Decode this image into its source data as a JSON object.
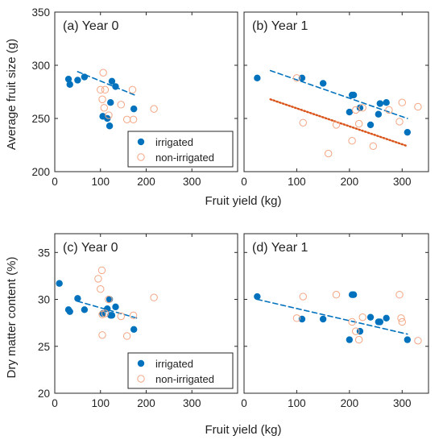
{
  "colors": {
    "irrigated": "#0072BD",
    "non_irrigated": "#F4A582",
    "dotted_fit": "#D95319",
    "axis": "#262626"
  },
  "labels": {
    "fruit_yield": "Fruit yield (kg)",
    "avg_fruit_size": "Average fruit size (g)",
    "dry_matter": "Dry matter content (%)"
  },
  "chart_data": [
    {
      "type": "scatter",
      "title": "(a) Year 0",
      "xlim": [
        0,
        400
      ],
      "ylim": [
        200,
        350
      ],
      "xticks": [
        0,
        100,
        200,
        300
      ],
      "yticks": [
        200,
        250,
        300,
        350
      ],
      "show_xtick_labels": true,
      "show_ytick_labels": true,
      "legend": {
        "position": "bottom-right",
        "entries": [
          "irrigated",
          "non-irrigated"
        ]
      },
      "series": [
        {
          "name": "irrigated",
          "marker": "filled",
          "points": [
            [
              30,
              287
            ],
            [
              33,
              282
            ],
            [
              50,
              286
            ],
            [
              65,
              289
            ],
            [
              105,
              252
            ],
            [
              115,
              250
            ],
            [
              120,
              243
            ],
            [
              122,
              265
            ],
            [
              125,
              285
            ],
            [
              133,
              280
            ],
            [
              173,
              259
            ]
          ]
        },
        {
          "name": "non-irrigated",
          "marker": "open",
          "points": [
            [
              100,
              277
            ],
            [
              104,
              268
            ],
            [
              106,
              293
            ],
            [
              108,
              260
            ],
            [
              110,
              277
            ],
            [
              118,
              253
            ],
            [
              145,
              263
            ],
            [
              158,
              249
            ],
            [
              170,
              277
            ],
            [
              172,
              249
            ],
            [
              217,
              259
            ]
          ]
        }
      ],
      "fits": [
        {
          "series": "irrigated",
          "style": "dashed",
          "x": [
            50,
            175
          ],
          "y": [
            294,
            272
          ]
        }
      ]
    },
    {
      "type": "scatter",
      "title": "(b) Year 1",
      "xlim": [
        0,
        350
      ],
      "ylim": [
        200,
        350
      ],
      "xticks": [
        0,
        100,
        200,
        300
      ],
      "yticks": [
        200,
        250,
        300,
        350
      ],
      "show_xtick_labels": true,
      "show_ytick_labels": false,
      "series": [
        {
          "name": "irrigated",
          "marker": "filled",
          "points": [
            [
              25,
              288
            ],
            [
              110,
              288
            ],
            [
              150,
              283
            ],
            [
              200,
              256
            ],
            [
              205,
              272
            ],
            [
              208,
              272
            ],
            [
              220,
              260
            ],
            [
              240,
              244
            ],
            [
              255,
              254
            ],
            [
              258,
              264
            ],
            [
              270,
              265
            ],
            [
              310,
              237
            ]
          ]
        },
        {
          "name": "non-irrigated",
          "marker": "open",
          "points": [
            [
              100,
              288
            ],
            [
              112,
              246
            ],
            [
              160,
              217
            ],
            [
              175,
              244
            ],
            [
              205,
              229
            ],
            [
              212,
              258
            ],
            [
              218,
              245
            ],
            [
              225,
              260
            ],
            [
              245,
              224
            ],
            [
              275,
              258
            ],
            [
              295,
              247
            ],
            [
              300,
              265
            ],
            [
              330,
              261
            ]
          ]
        }
      ],
      "fits": [
        {
          "series": "irrigated",
          "style": "dashed",
          "x": [
            50,
            310
          ],
          "y": [
            295,
            250
          ]
        },
        {
          "series": "non-irrigated",
          "style": "dotted",
          "x": [
            50,
            310
          ],
          "y": [
            268,
            224
          ]
        }
      ]
    },
    {
      "type": "scatter",
      "title": "(c) Year 0",
      "xlim": [
        0,
        400
      ],
      "ylim": [
        20,
        37
      ],
      "xticks": [
        0,
        100,
        200,
        300
      ],
      "yticks": [
        20,
        25,
        30,
        35
      ],
      "show_xtick_labels": true,
      "show_ytick_labels": true,
      "legend": {
        "position": "bottom-right",
        "entries": [
          "irrigated",
          "non-irrigated"
        ]
      },
      "series": [
        {
          "name": "irrigated",
          "marker": "filled",
          "points": [
            [
              10,
              31.7
            ],
            [
              30,
              28.9
            ],
            [
              33,
              28.7
            ],
            [
              50,
              30.1
            ],
            [
              65,
              28.9
            ],
            [
              105,
              28.5
            ],
            [
              115,
              29.0
            ],
            [
              120,
              30.0
            ],
            [
              122,
              28.3
            ],
            [
              125,
              28.3
            ],
            [
              133,
              29.2
            ],
            [
              173,
              26.8
            ]
          ]
        },
        {
          "name": "non-irrigated",
          "marker": "open",
          "points": [
            [
              95,
              32.2
            ],
            [
              100,
              31.1
            ],
            [
              103,
              33.1
            ],
            [
              104,
              28.4
            ],
            [
              104,
              26.2
            ],
            [
              110,
              28.5
            ],
            [
              118,
              30.0
            ],
            [
              145,
              28.2
            ],
            [
              158,
              26.1
            ],
            [
              172,
              28.3
            ],
            [
              217,
              30.2
            ]
          ]
        }
      ],
      "fits": [
        {
          "series": "irrigated",
          "style": "dashed",
          "x": [
            50,
            180
          ],
          "y": [
            29.8,
            28.0
          ]
        }
      ]
    },
    {
      "type": "scatter",
      "title": "(d) Year 1",
      "xlim": [
        0,
        350
      ],
      "ylim": [
        20,
        37
      ],
      "xticks": [
        0,
        100,
        200,
        300
      ],
      "yticks": [
        20,
        25,
        30,
        35
      ],
      "show_xtick_labels": true,
      "show_ytick_labels": false,
      "series": [
        {
          "name": "irrigated",
          "marker": "filled",
          "points": [
            [
              25,
              30.3
            ],
            [
              110,
              27.9
            ],
            [
              150,
              27.9
            ],
            [
              200,
              25.7
            ],
            [
              205,
              30.5
            ],
            [
              208,
              30.5
            ],
            [
              220,
              26.6
            ],
            [
              240,
              28.1
            ],
            [
              255,
              27.6
            ],
            [
              258,
              27.6
            ],
            [
              270,
              28.0
            ],
            [
              310,
              25.7
            ]
          ]
        },
        {
          "name": "non-irrigated",
          "marker": "open",
          "points": [
            [
              100,
              28.0
            ],
            [
              112,
              30.3
            ],
            [
              175,
              30.5
            ],
            [
              205,
              27.6
            ],
            [
              212,
              26.6
            ],
            [
              218,
              25.7
            ],
            [
              225,
              28.1
            ],
            [
              295,
              30.5
            ],
            [
              298,
              28.0
            ],
            [
              300,
              27.6
            ],
            [
              330,
              25.6
            ]
          ]
        }
      ],
      "fits": [
        {
          "series": "irrigated",
          "style": "dashed",
          "x": [
            25,
            310
          ],
          "y": [
            30.0,
            26.3
          ]
        }
      ]
    }
  ]
}
